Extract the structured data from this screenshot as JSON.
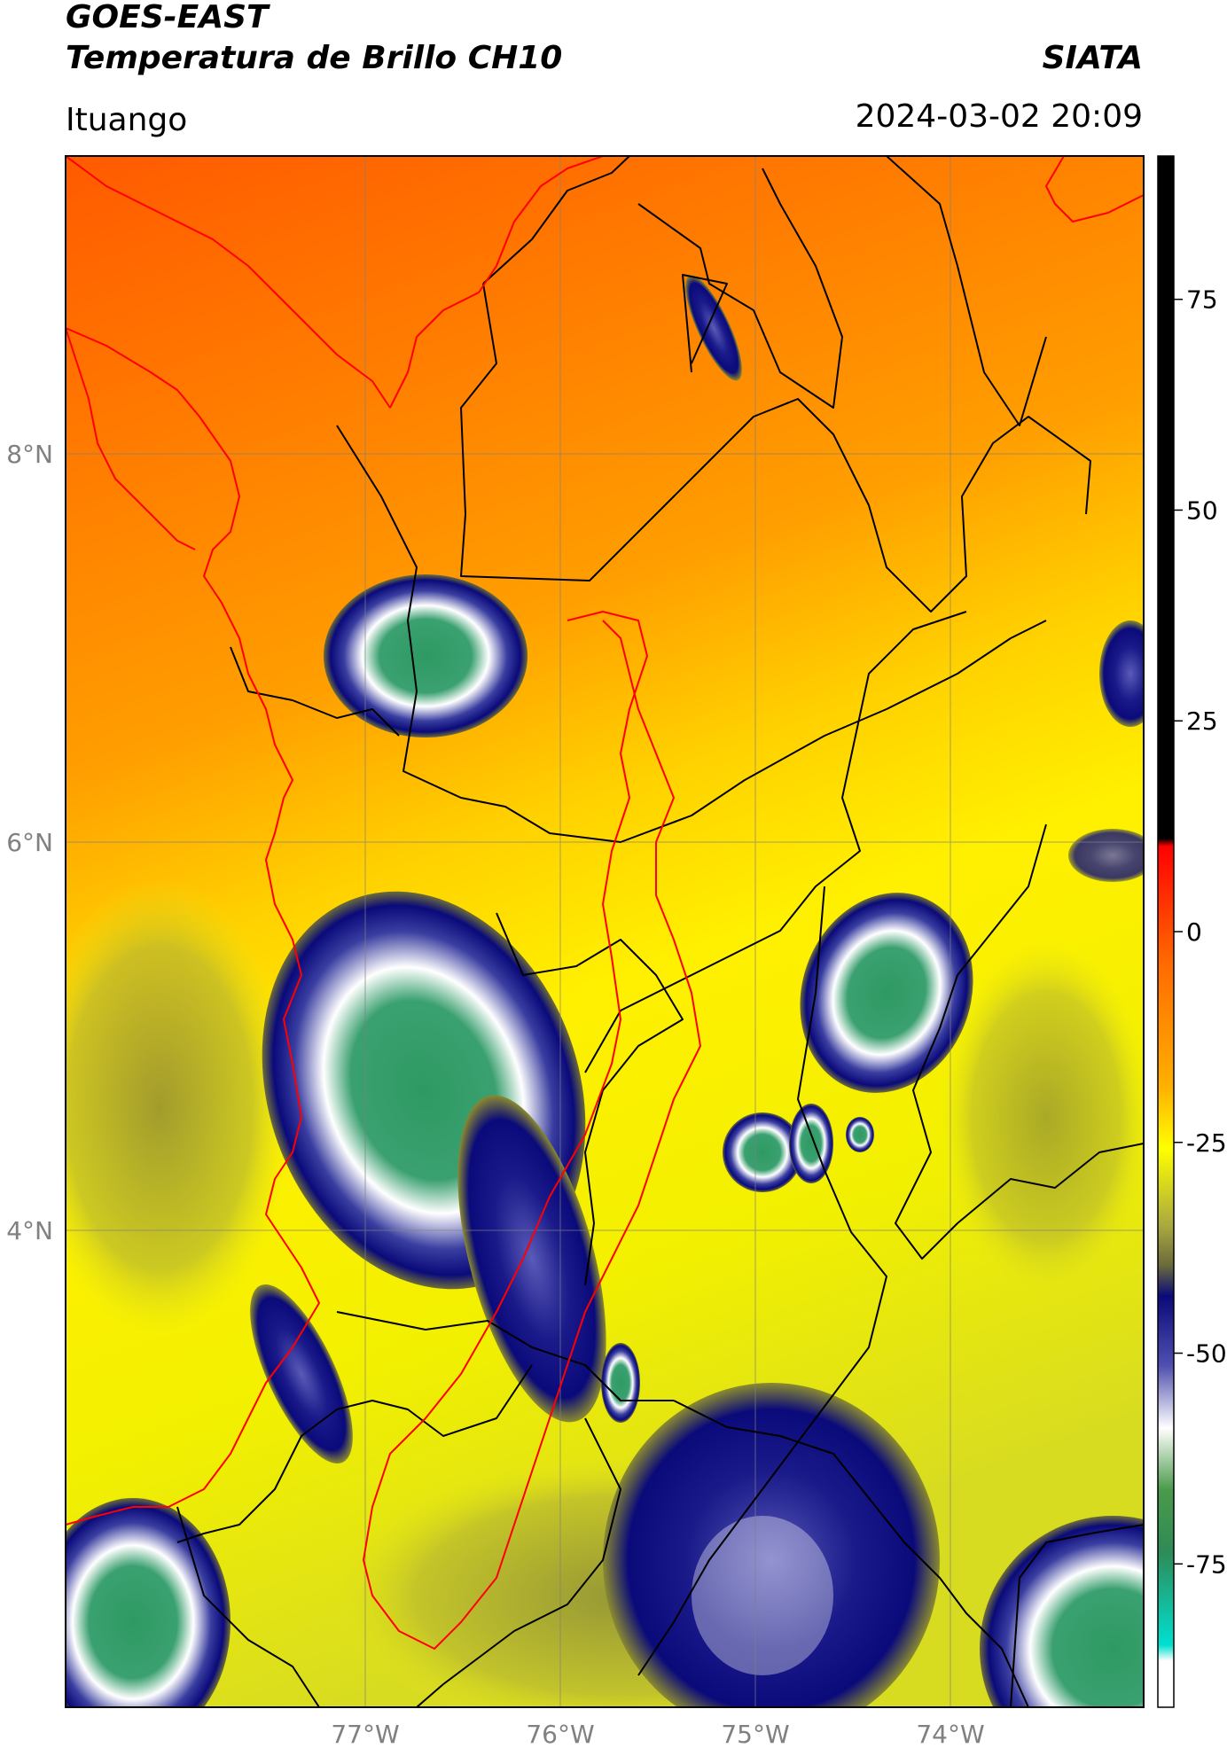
{
  "header": {
    "satellite": "GOES-EAST",
    "product": "Temperatura de Brillo CH10",
    "organization": "SIATA",
    "location": "Ituango",
    "datetime": "2024-03-02 20:09"
  },
  "map": {
    "lat_labels": [
      "8°N",
      "6°N",
      "4°N"
    ],
    "lon_labels": [
      "77°W",
      "76°W",
      "75°W",
      "74°W"
    ]
  },
  "colorbar": {
    "ticks": [
      "75",
      "50",
      "25",
      "0",
      "-25",
      "-50",
      "-75"
    ],
    "tick_values": [
      75,
      50,
      25,
      0,
      -25,
      -50,
      -75
    ],
    "range": [
      -92,
      92
    ],
    "colors": {
      "warm_top": "#000000",
      "hot": "#ff0000",
      "orange": "#ff8c00",
      "yellow": "#ffff00",
      "olive": "#6b6b3a",
      "navy": "#0a0a7a",
      "white": "#ffffff",
      "green": "#2e8b57",
      "cyan": "#00e5e5"
    }
  },
  "colors": {
    "country_border": "#ff0000",
    "admin_border": "#000000",
    "grid": "#808080"
  }
}
